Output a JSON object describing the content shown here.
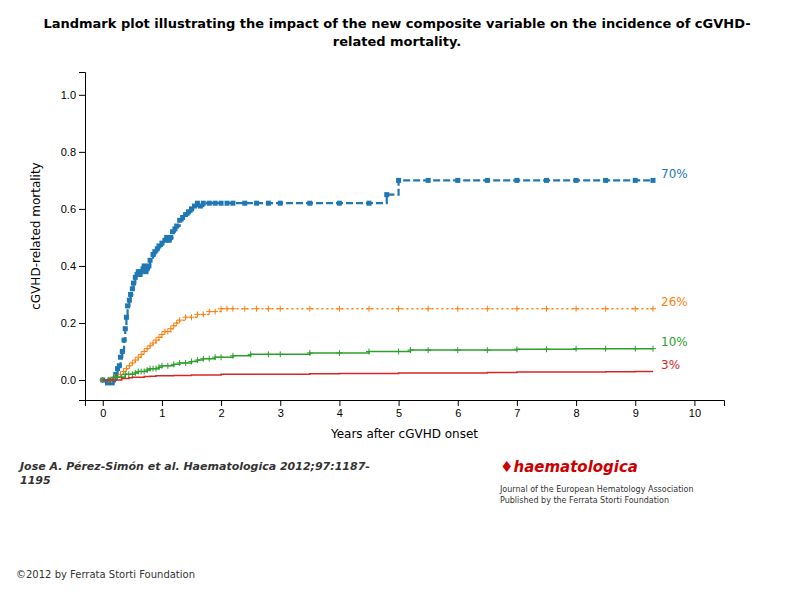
{
  "chart_data": {
    "type": "line",
    "title": "Landmark plot illustrating the impact of the new composite variable on the incidence of cGVHD-\nrelated mortality.",
    "x_label": "Years after cGVHD onset",
    "y_label": "cGVHD-related mortality",
    "xlim": [
      -0.3,
      10.5
    ],
    "ylim": [
      -0.07,
      1.08
    ],
    "xticks": [
      0,
      1,
      2,
      3,
      4,
      5,
      6,
      7,
      8,
      9,
      10
    ],
    "yticks": [
      {
        "value": 0.0,
        "label": "0.0"
      },
      0.2,
      0.4,
      0.6,
      0.8,
      {
        "value": 1.0,
        "label": "1.0"
      }
    ],
    "grid": false,
    "series": [
      {
        "name": "70%",
        "marker": "square",
        "line_style": "dashed",
        "x": [
          0,
          0.08,
          0.12,
          0.16,
          0.18,
          0.22,
          0.25,
          0.28,
          0.3,
          0.33,
          0.36,
          0.38,
          0.4,
          0.42,
          0.45,
          0.47,
          0.5,
          0.52,
          0.55,
          0.58,
          0.6,
          0.63,
          0.65,
          0.68,
          0.7,
          0.73,
          0.75,
          0.78,
          0.8,
          0.85,
          0.88,
          0.92,
          0.95,
          1.0,
          1.05,
          1.08,
          1.12,
          1.15,
          1.18,
          1.22,
          1.25,
          1.3,
          1.35,
          1.4,
          1.45,
          1.5,
          1.55,
          1.6,
          1.65,
          1.7,
          1.8,
          1.9,
          2.0,
          2.1,
          2.2,
          2.4,
          2.6,
          2.8,
          3.0,
          3.5,
          4.0,
          4.5,
          4.8,
          5.0,
          5.5,
          6.0,
          6.5,
          7.0,
          7.5,
          8.0,
          8.5,
          9.0,
          9.3
        ],
        "values": [
          0.0,
          -0.01,
          0.0,
          -0.01,
          0.0,
          0.02,
          0.04,
          0.05,
          0.08,
          0.1,
          0.14,
          0.18,
          0.22,
          0.26,
          0.28,
          0.3,
          0.32,
          0.34,
          0.36,
          0.37,
          0.38,
          0.37,
          0.38,
          0.39,
          0.4,
          0.38,
          0.39,
          0.4,
          0.42,
          0.44,
          0.45,
          0.46,
          0.47,
          0.48,
          0.49,
          0.5,
          0.49,
          0.5,
          0.52,
          0.53,
          0.54,
          0.56,
          0.57,
          0.58,
          0.59,
          0.6,
          0.61,
          0.62,
          0.61,
          0.62,
          0.62,
          0.62,
          0.62,
          0.62,
          0.62,
          0.62,
          0.62,
          0.62,
          0.62,
          0.62,
          0.62,
          0.62,
          0.65,
          0.7,
          0.7,
          0.7,
          0.7,
          0.7,
          0.7,
          0.7,
          0.7,
          0.7,
          0.7
        ]
      },
      {
        "name": "26%",
        "marker": "plus",
        "line_style": "dotted",
        "x": [
          0,
          0.1,
          0.15,
          0.2,
          0.25,
          0.3,
          0.35,
          0.4,
          0.45,
          0.5,
          0.55,
          0.6,
          0.65,
          0.7,
          0.75,
          0.8,
          0.85,
          0.9,
          0.95,
          1.0,
          1.05,
          1.1,
          1.15,
          1.2,
          1.25,
          1.3,
          1.4,
          1.5,
          1.6,
          1.7,
          1.8,
          1.9,
          2.0,
          2.1,
          2.2,
          2.4,
          2.6,
          2.8,
          3.0,
          3.5,
          4.0,
          4.5,
          5.0,
          5.5,
          6.0,
          6.5,
          7.0,
          7.5,
          8.0,
          8.5,
          9.0,
          9.3
        ],
        "values": [
          0.0,
          0.0,
          0.0,
          0.01,
          0.01,
          0.02,
          0.03,
          0.04,
          0.05,
          0.06,
          0.07,
          0.08,
          0.09,
          0.1,
          0.11,
          0.12,
          0.13,
          0.14,
          0.15,
          0.16,
          0.17,
          0.17,
          0.18,
          0.19,
          0.2,
          0.21,
          0.22,
          0.22,
          0.23,
          0.23,
          0.24,
          0.24,
          0.25,
          0.25,
          0.25,
          0.25,
          0.25,
          0.25,
          0.25,
          0.25,
          0.25,
          0.25,
          0.25,
          0.25,
          0.25,
          0.25,
          0.25,
          0.25,
          0.25,
          0.25,
          0.25,
          0.25
        ]
      },
      {
        "name": "10%",
        "marker": "plus",
        "line_style": "solid",
        "x": [
          0,
          0.1,
          0.18,
          0.25,
          0.32,
          0.38,
          0.44,
          0.5,
          0.55,
          0.6,
          0.65,
          0.7,
          0.75,
          0.8,
          0.85,
          0.9,
          0.95,
          1.0,
          1.1,
          1.2,
          1.3,
          1.4,
          1.5,
          1.6,
          1.7,
          1.8,
          1.9,
          2.0,
          2.2,
          2.5,
          2.8,
          3.0,
          3.5,
          4.0,
          4.5,
          5.0,
          5.2,
          5.5,
          6.0,
          6.5,
          7.0,
          7.5,
          8.0,
          8.5,
          9.0,
          9.3
        ],
        "values": [
          0.0,
          0.0,
          0.01,
          0.01,
          0.01,
          0.02,
          0.02,
          0.02,
          0.025,
          0.03,
          0.03,
          0.03,
          0.035,
          0.04,
          0.04,
          0.04,
          0.045,
          0.05,
          0.05,
          0.055,
          0.06,
          0.06,
          0.065,
          0.07,
          0.075,
          0.075,
          0.08,
          0.08,
          0.085,
          0.09,
          0.09,
          0.09,
          0.095,
          0.095,
          0.1,
          0.1,
          0.105,
          0.105,
          0.105,
          0.105,
          0.108,
          0.108,
          0.11,
          0.11,
          0.11,
          0.11
        ]
      },
      {
        "name": "3%",
        "marker": "none",
        "line_style": "solid",
        "x": [
          0,
          0.1,
          0.18,
          0.25,
          0.32,
          0.38,
          0.44,
          0.5,
          0.6,
          0.7,
          0.8,
          0.9,
          1.0,
          1.2,
          1.5,
          1.8,
          2.0,
          2.5,
          3.0,
          3.5,
          4.0,
          4.5,
          5.0,
          5.5,
          6.0,
          6.5,
          7.0,
          7.5,
          8.0,
          8.5,
          9.0,
          9.3
        ],
        "values": [
          0.0,
          0.0,
          0.0,
          0.0,
          0.005,
          0.005,
          0.008,
          0.01,
          0.01,
          0.012,
          0.013,
          0.015,
          0.015,
          0.016,
          0.018,
          0.018,
          0.02,
          0.02,
          0.02,
          0.022,
          0.023,
          0.023,
          0.025,
          0.025,
          0.025,
          0.026,
          0.028,
          0.028,
          0.028,
          0.029,
          0.03,
          0.03
        ]
      }
    ],
    "annotations": [
      {
        "text": "Jose A. Pérez-Simón et al. Haematologica 2012;97:1187-\n1195"
      },
      {
        "text": "♦haematologica",
        "color": "#cc0000"
      },
      {
        "text": "Journal of the European Hematology Association\nPublished by the Ferrata Storti Foundation"
      },
      {
        "text": "©2012 by Ferrata Storti Foundation"
      }
    ]
  }
}
